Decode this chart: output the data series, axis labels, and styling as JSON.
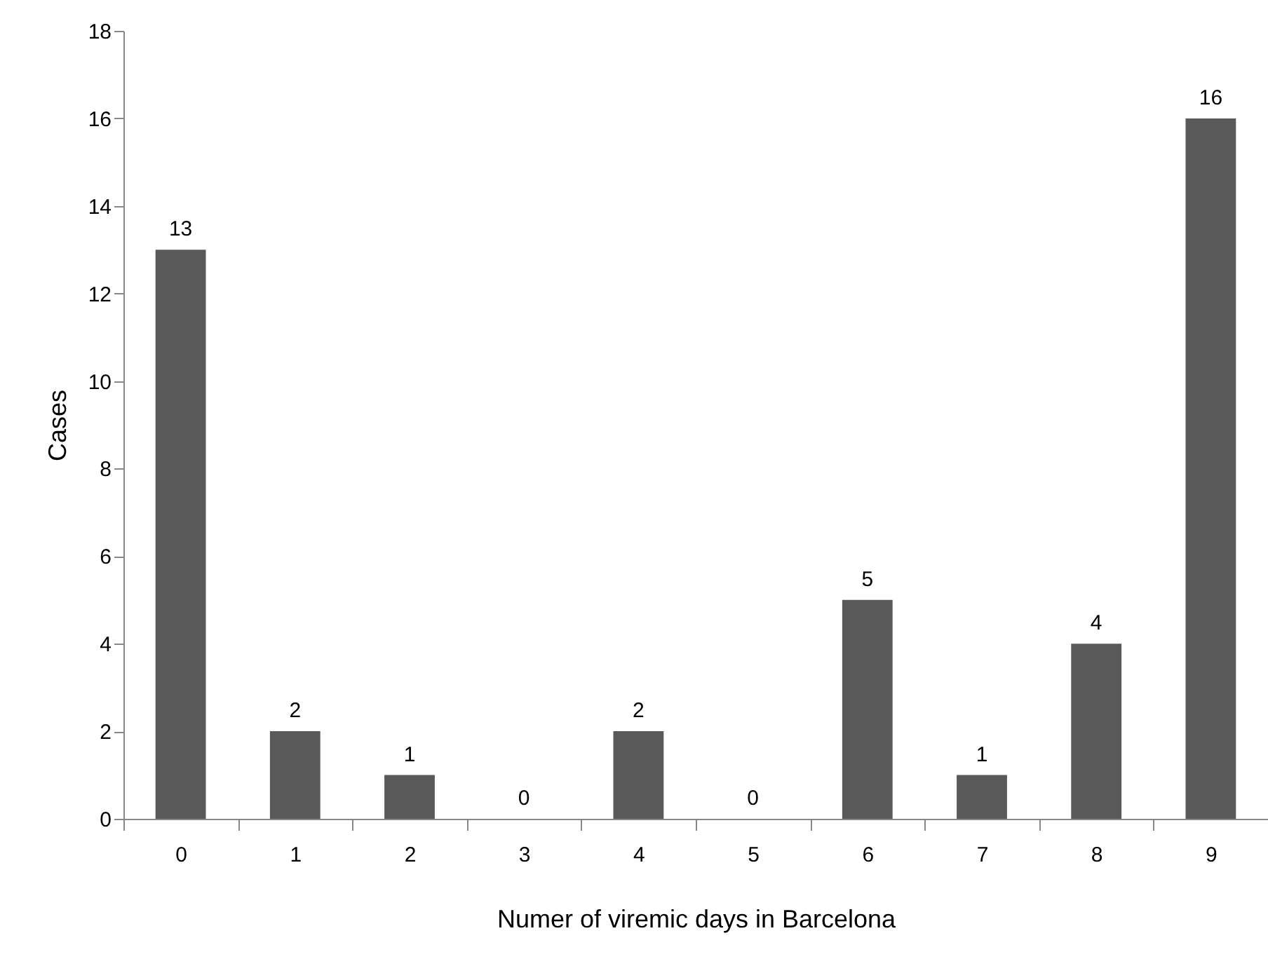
{
  "chart_data": {
    "type": "bar",
    "xlabel": "Numer of viremic days in Barcelona",
    "ylabel": "Cases",
    "categories": [
      "0",
      "1",
      "2",
      "3",
      "4",
      "5",
      "6",
      "7",
      "8",
      "9"
    ],
    "values": [
      13,
      2,
      1,
      0,
      2,
      0,
      5,
      1,
      4,
      16
    ],
    "color": "#595959",
    "ylim": [
      0,
      18
    ],
    "yticks": [
      0,
      2,
      4,
      6,
      8,
      10,
      12,
      14,
      16,
      18
    ],
    "grid": false,
    "data_labels": true
  }
}
